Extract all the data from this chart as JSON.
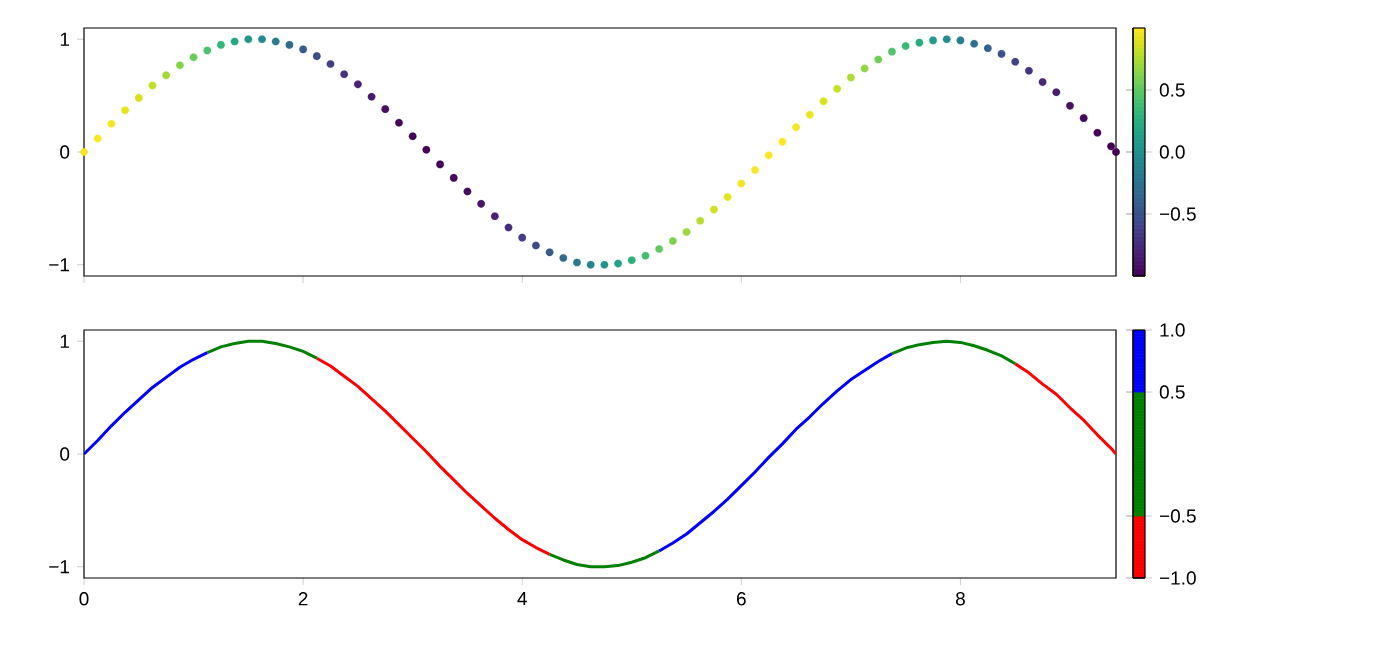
{
  "chart_data": [
    {
      "type": "scatter",
      "marker": "circle",
      "x": [
        0,
        0.125,
        0.25,
        0.375,
        0.5,
        0.625,
        0.75,
        0.875,
        1.0,
        1.125,
        1.25,
        1.375,
        1.5,
        1.625,
        1.75,
        1.875,
        2.0,
        2.125,
        2.25,
        2.375,
        2.5,
        2.625,
        2.75,
        2.875,
        3.0,
        3.125,
        3.25,
        3.375,
        3.5,
        3.625,
        3.75,
        3.875,
        4.0,
        4.125,
        4.25,
        4.375,
        4.5,
        4.625,
        4.75,
        4.875,
        5.0,
        5.125,
        5.25,
        5.375,
        5.5,
        5.625,
        5.75,
        5.875,
        6.0,
        6.125,
        6.25,
        6.375,
        6.5,
        6.625,
        6.75,
        6.875,
        7.0,
        7.125,
        7.25,
        7.375,
        7.5,
        7.625,
        7.75,
        7.875,
        8.0,
        8.125,
        8.25,
        8.375,
        8.5,
        8.625,
        8.75,
        8.875,
        9.0,
        9.125,
        9.25,
        9.375,
        9.42
      ],
      "series": [
        {
          "values": [
            0,
            0.12,
            0.25,
            0.37,
            0.48,
            0.59,
            0.68,
            0.77,
            0.84,
            0.9,
            0.95,
            0.98,
            1.0,
            1.0,
            0.98,
            0.95,
            0.91,
            0.85,
            0.78,
            0.69,
            0.6,
            0.49,
            0.38,
            0.26,
            0.14,
            0.02,
            -0.11,
            -0.23,
            -0.35,
            -0.46,
            -0.57,
            -0.67,
            -0.76,
            -0.83,
            -0.89,
            -0.94,
            -0.98,
            -1.0,
            -1.0,
            -0.99,
            -0.96,
            -0.92,
            -0.86,
            -0.79,
            -0.71,
            -0.61,
            -0.51,
            -0.4,
            -0.28,
            -0.16,
            -0.03,
            0.09,
            0.22,
            0.33,
            0.45,
            0.56,
            0.66,
            0.74,
            0.82,
            0.89,
            0.94,
            0.97,
            0.99,
            1.0,
            0.99,
            0.96,
            0.92,
            0.87,
            0.8,
            0.72,
            0.62,
            0.53,
            0.41,
            0.3,
            0.17,
            0.05,
            0.0
          ],
          "cvalues": [
            1,
            0.99,
            0.97,
            0.93,
            0.88,
            0.81,
            0.73,
            0.64,
            0.54,
            0.43,
            0.32,
            0.19,
            0.07,
            -0.05,
            -0.18,
            -0.3,
            -0.42,
            -0.53,
            -0.63,
            -0.72,
            -0.8,
            -0.87,
            -0.92,
            -0.97,
            -0.99,
            -1.0,
            -0.99,
            -0.97,
            -0.94,
            -0.89,
            -0.82,
            -0.74,
            -0.65,
            -0.56,
            -0.45,
            -0.33,
            -0.21,
            -0.09,
            0.04,
            0.16,
            0.28,
            0.4,
            0.51,
            0.61,
            0.71,
            0.79,
            0.86,
            0.92,
            0.96,
            0.99,
            1.0,
            1.0,
            0.98,
            0.94,
            0.89,
            0.83,
            0.75,
            0.67,
            0.57,
            0.46,
            0.35,
            0.23,
            0.11,
            -0.02,
            -0.15,
            -0.27,
            -0.39,
            -0.5,
            -0.6,
            -0.7,
            -0.78,
            -0.85,
            -0.91,
            -0.95,
            -0.99,
            -1.0,
            -1.0
          ]
        }
      ],
      "xlim": [
        0,
        9.42
      ],
      "xticks": [
        0,
        2,
        4,
        6,
        8
      ],
      "ylim": [
        -1.1,
        1.1
      ],
      "yticks": [
        {
          "value": -1,
          "label": "−1"
        },
        0,
        1
      ],
      "tick_labels": "y",
      "clim": [
        -1,
        1
      ],
      "cticks": [
        {
          "value": -0.5,
          "label": "−0.5"
        },
        {
          "value": 0,
          "label": "0.0"
        },
        {
          "value": 0.5,
          "label": "0.5"
        }
      ]
    },
    {
      "type": "line",
      "x": [
        0,
        0.125,
        0.25,
        0.375,
        0.5,
        0.625,
        0.75,
        0.875,
        1.0,
        1.125,
        1.25,
        1.375,
        1.5,
        1.625,
        1.75,
        1.875,
        2.0,
        2.125,
        2.25,
        2.375,
        2.5,
        2.625,
        2.75,
        2.875,
        3.0,
        3.125,
        3.25,
        3.375,
        3.5,
        3.625,
        3.75,
        3.875,
        4.0,
        4.125,
        4.25,
        4.375,
        4.5,
        4.625,
        4.75,
        4.875,
        5.0,
        5.125,
        5.25,
        5.375,
        5.5,
        5.625,
        5.75,
        5.875,
        6.0,
        6.125,
        6.25,
        6.375,
        6.5,
        6.625,
        6.75,
        6.875,
        7.0,
        7.125,
        7.25,
        7.375,
        7.5,
        7.625,
        7.75,
        7.875,
        8.0,
        8.125,
        8.25,
        8.375,
        8.5,
        8.625,
        8.75,
        8.875,
        9.0,
        9.125,
        9.25,
        9.375,
        9.42
      ],
      "series": [
        {
          "color": "#ff0000",
          "values": [
            null,
            null,
            null,
            null,
            null,
            null,
            null,
            null,
            null,
            null,
            null,
            null,
            null,
            null,
            null,
            null,
            null,
            0.85,
            0.78,
            0.69,
            0.6,
            0.49,
            0.38,
            0.26,
            0.14,
            0.02,
            -0.11,
            -0.23,
            -0.35,
            -0.46,
            -0.57,
            -0.67,
            -0.76,
            -0.83,
            -0.89,
            null,
            null,
            null,
            null,
            null,
            null,
            null,
            null,
            null,
            null,
            null,
            null,
            null,
            null,
            null,
            null,
            null,
            null,
            null,
            null,
            null,
            null,
            null,
            null,
            null,
            null,
            null,
            null,
            null,
            null,
            null,
            null,
            null,
            0.8,
            0.72,
            0.62,
            0.53,
            0.41,
            0.3,
            0.17,
            0.05,
            0.0
          ]
        },
        {
          "color": "#008000",
          "values": [
            null,
            null,
            null,
            null,
            null,
            null,
            null,
            null,
            null,
            0.9,
            0.95,
            0.98,
            1.0,
            1.0,
            0.98,
            0.95,
            0.91,
            0.85,
            null,
            null,
            null,
            null,
            null,
            null,
            null,
            null,
            null,
            null,
            null,
            null,
            null,
            null,
            null,
            null,
            -0.89,
            -0.94,
            -0.98,
            -1.0,
            -1.0,
            -0.99,
            -0.96,
            -0.92,
            -0.86,
            null,
            null,
            null,
            null,
            null,
            null,
            null,
            null,
            null,
            null,
            null,
            null,
            null,
            null,
            null,
            null,
            0.89,
            0.94,
            0.97,
            0.99,
            1.0,
            0.99,
            0.96,
            0.92,
            0.87,
            0.8,
            null,
            null,
            null,
            null,
            null,
            null,
            null,
            null
          ]
        },
        {
          "color": "#0000ff",
          "values": [
            0,
            0.12,
            0.25,
            0.37,
            0.48,
            0.59,
            0.68,
            0.77,
            0.84,
            0.9,
            null,
            null,
            null,
            null,
            null,
            null,
            null,
            null,
            null,
            null,
            null,
            null,
            null,
            null,
            null,
            null,
            null,
            null,
            null,
            null,
            null,
            null,
            null,
            null,
            null,
            null,
            null,
            null,
            null,
            null,
            null,
            null,
            -0.86,
            -0.79,
            -0.71,
            -0.61,
            -0.51,
            -0.4,
            -0.28,
            -0.16,
            -0.03,
            0.09,
            0.22,
            0.33,
            0.45,
            0.56,
            0.66,
            0.74,
            0.82,
            0.89,
            null,
            null,
            null,
            null,
            null,
            null,
            null,
            null,
            null,
            null,
            null,
            null,
            null,
            null,
            null,
            null,
            null
          ]
        }
      ],
      "xlim": [
        0,
        9.42
      ],
      "xticks": [
        0,
        2,
        4,
        6,
        8
      ],
      "ylim": [
        -1.1,
        1.1
      ],
      "yticks": [
        {
          "value": -1,
          "label": "−1"
        },
        0,
        1
      ],
      "cticks": [
        {
          "value": -1.0,
          "label": "−1.0"
        },
        {
          "value": -0.5,
          "label": "−0.5"
        },
        {
          "value": 0.5,
          "label": "0.5"
        },
        {
          "value": 1.0,
          "label": "1.0"
        }
      ]
    }
  ]
}
